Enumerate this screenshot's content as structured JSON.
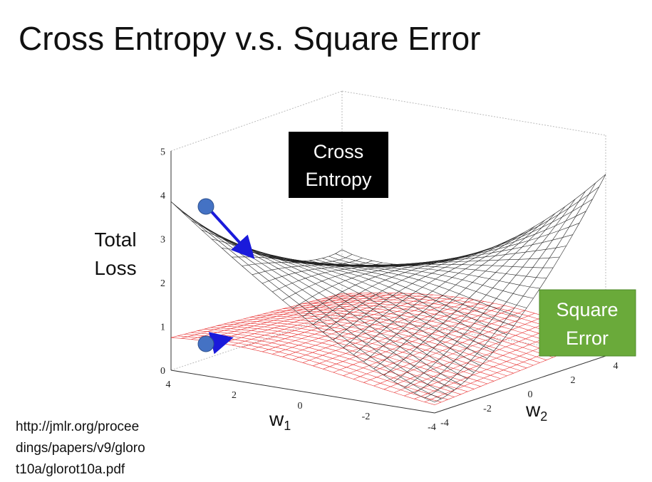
{
  "title": "Cross Entropy v.s. Square Error",
  "z_axis": {
    "label": [
      "Total",
      "Loss"
    ],
    "ticks": [
      "0",
      "1",
      "2",
      "3",
      "4",
      "5"
    ]
  },
  "w1_axis": {
    "label": "w",
    "subscript": "1",
    "ticks": [
      "4",
      "2",
      "0",
      "-2",
      "-4"
    ]
  },
  "w2_axis": {
    "label": "w",
    "subscript": "2",
    "ticks": [
      "-4",
      "-2",
      "0",
      "2",
      "4"
    ]
  },
  "callouts": {
    "cross_entropy": [
      "Cross",
      "Entropy"
    ],
    "square_error": [
      "Square",
      "Error"
    ]
  },
  "source": [
    "http://jmlr.org/procee",
    "dings/papers/v9/gloro",
    "t10a/glorot10a.pdf"
  ]
}
